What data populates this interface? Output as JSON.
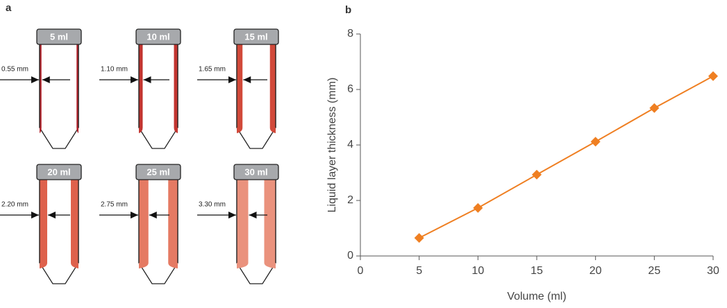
{
  "panel_a": {
    "label": "a",
    "tubes": [
      {
        "volume": "5 ml",
        "thickness": "0.55 mm",
        "color": "#b3222b"
      },
      {
        "volume": "10 ml",
        "thickness": "1.10 mm",
        "color": "#c23530"
      },
      {
        "volume": "15 ml",
        "thickness": "1.65 mm",
        "color": "#d1493a"
      },
      {
        "volume": "20 ml",
        "thickness": "2.20 mm",
        "color": "#de614c"
      },
      {
        "volume": "25 ml",
        "thickness": "2.75 mm",
        "color": "#e57a63"
      },
      {
        "volume": "30 ml",
        "thickness": "3.30 mm",
        "color": "#ea927d"
      }
    ]
  },
  "chart_data": {
    "type": "line",
    "panel_label": "b",
    "x_label": "Volume (ml)",
    "y_label": "Liquid layer thickness (mm)",
    "x": [
      5,
      10,
      15,
      20,
      25,
      30
    ],
    "series": [
      {
        "color": "#ef7f22",
        "values": [
          0.65,
          1.73,
          2.93,
          4.12,
          5.33,
          6.48
        ]
      }
    ],
    "xlim": [
      0,
      30
    ],
    "ylim": [
      0,
      8
    ],
    "xticks": [
      0,
      5,
      10,
      15,
      20,
      25,
      30
    ],
    "yticks": [
      0,
      2,
      4,
      6,
      8
    ],
    "marker": "diamond"
  }
}
